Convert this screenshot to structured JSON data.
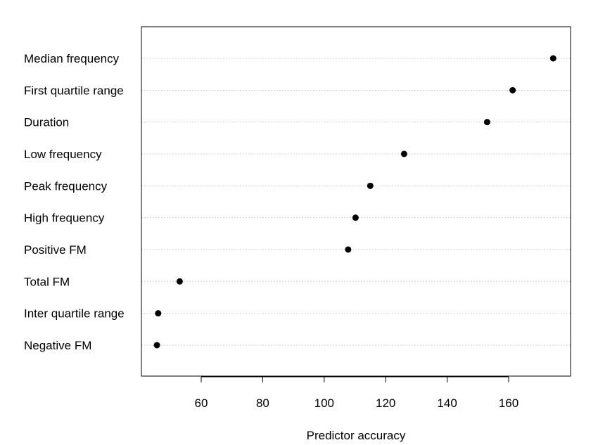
{
  "chart_data": {
    "type": "scatter",
    "title": "",
    "xlabel": "Predictor accuracy",
    "ylabel": "",
    "xlim": [
      40,
      180
    ],
    "xticks": [
      60,
      80,
      100,
      120,
      140,
      160
    ],
    "grid": "horizontal dotted",
    "points": [
      {
        "label": "Median frequency",
        "value": 174.5
      },
      {
        "label": "First quartile range",
        "value": 161.3
      },
      {
        "label": "Duration",
        "value": 153
      },
      {
        "label": "Low frequency",
        "value": 126
      },
      {
        "label": "Peak frequency",
        "value": 115
      },
      {
        "label": "High frequency",
        "value": 110.2
      },
      {
        "label": "Positive FM",
        "value": 107.8
      },
      {
        "label": "Total FM",
        "value": 53
      },
      {
        "label": "Inter quartile range",
        "value": 46
      },
      {
        "label": "Negative FM",
        "value": 45.6
      }
    ]
  },
  "colors": {
    "point": "#000000",
    "grid": "#bebebe",
    "axis": "#000000"
  }
}
